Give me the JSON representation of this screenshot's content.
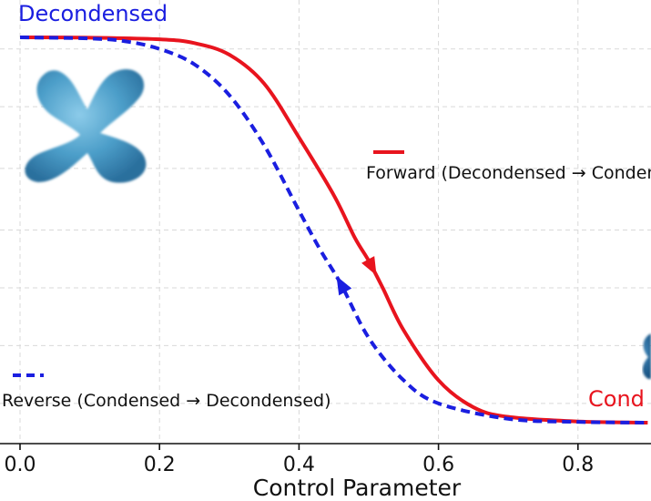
{
  "chart_data": {
    "type": "line",
    "title": "",
    "xlabel": "Control Parameter",
    "ylabel": "",
    "xlim": [
      0.0,
      0.9
    ],
    "ylim": [
      0.0,
      1.0
    ],
    "xticks": [
      "0.0",
      "0.2",
      "0.4",
      "0.6",
      "0.8"
    ],
    "xtick_values": [
      0.0,
      0.2,
      0.4,
      0.6,
      0.8
    ],
    "grid": true,
    "series": [
      {
        "name": "Forward (Decondensed →  Condensed)",
        "style": "solid",
        "color": "#e8141e",
        "x": [
          0.0,
          0.1,
          0.2,
          0.25,
          0.3,
          0.35,
          0.4,
          0.45,
          0.48,
          0.5,
          0.52,
          0.55,
          0.6,
          0.65,
          0.7,
          0.8,
          0.9
        ],
        "y": [
          1.0,
          0.999,
          0.995,
          0.985,
          0.955,
          0.88,
          0.74,
          0.59,
          0.48,
          0.42,
          0.35,
          0.24,
          0.11,
          0.04,
          0.015,
          0.003,
          0.0
        ],
        "arrow": {
          "x": 0.505,
          "direction": "down"
        }
      },
      {
        "name": "Reverse (Condensed →  Decondensed)",
        "style": "dashed",
        "color": "#1a1ee0",
        "x": [
          0.0,
          0.1,
          0.15,
          0.2,
          0.25,
          0.3,
          0.35,
          0.4,
          0.43,
          0.46,
          0.5,
          0.55,
          0.6,
          0.7,
          0.8,
          0.9
        ],
        "y": [
          1.0,
          0.997,
          0.99,
          0.97,
          0.93,
          0.85,
          0.72,
          0.55,
          0.45,
          0.36,
          0.22,
          0.11,
          0.05,
          0.01,
          0.002,
          0.0
        ],
        "arrow": {
          "x": 0.46,
          "direction": "up"
        }
      }
    ],
    "annotations": {
      "top_left": "Decondensed",
      "bottom_right": "Cond"
    }
  },
  "colors": {
    "forward": "#e8141e",
    "reverse": "#1a1ee0",
    "grid": "#d9d9d9",
    "chromosome": "#4c9ec9"
  },
  "icons": {
    "decondensed": "decondensed-chromosome-icon",
    "condensed": "condensed-chromosome-icon"
  }
}
